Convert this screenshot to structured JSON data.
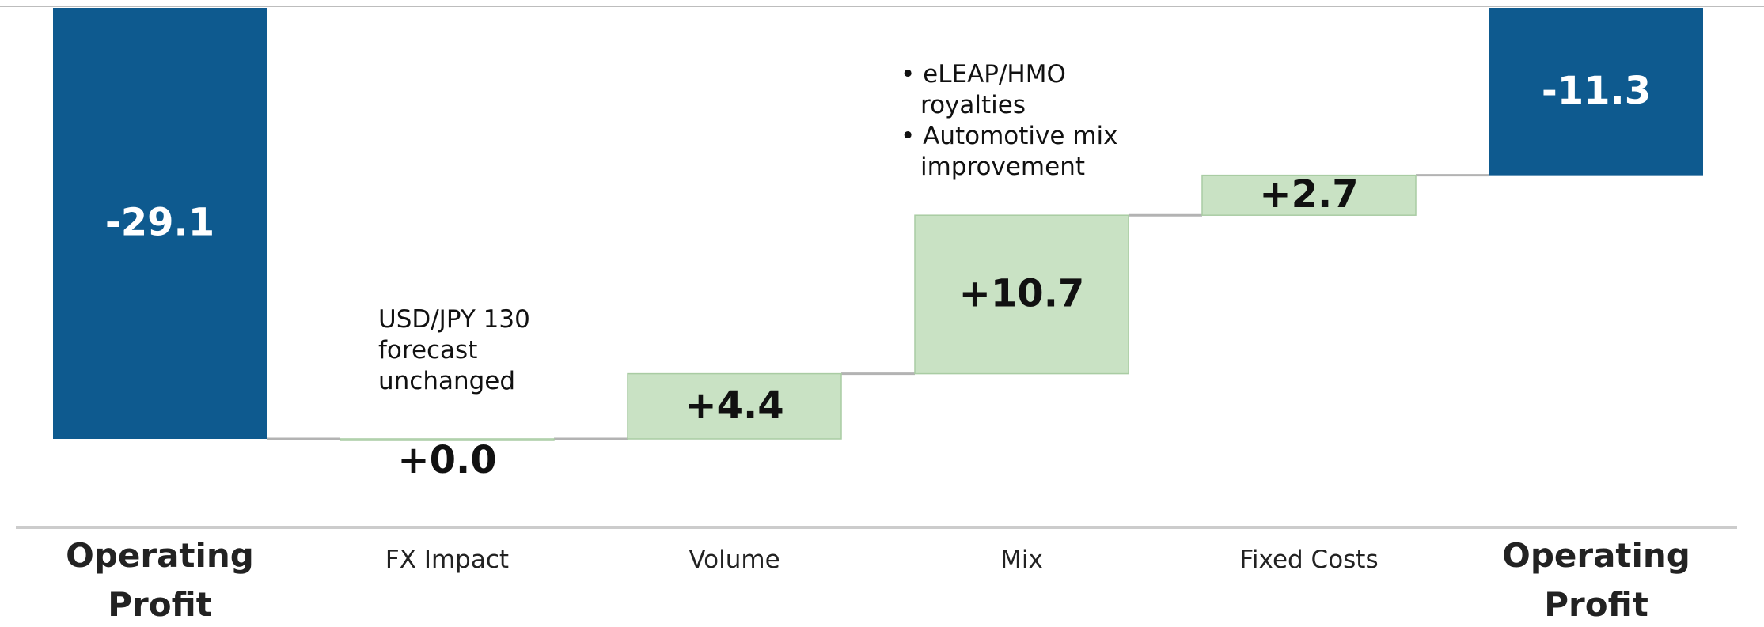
{
  "chart_data": {
    "type": "bar",
    "subtype": "waterfall",
    "categories": [
      "Operating\nProfit",
      "FX Impact",
      "Volume",
      "Mix",
      "Fixed Costs",
      "Operating\nProfit"
    ],
    "values": [
      -29.1,
      0.0,
      4.4,
      10.7,
      2.7,
      -11.3
    ],
    "kinds": [
      "total",
      "delta",
      "delta",
      "delta",
      "delta",
      "total"
    ],
    "value_labels": [
      "-29.1",
      "+0.0",
      "+4.4",
      "+10.7",
      "+2.7",
      "-11.3"
    ],
    "annotations": {
      "fx": [
        "USD/JPY 130",
        "forecast",
        "unchanged"
      ],
      "mix": [
        "• eLEAP/HMO",
        "royalties",
        "• Automotive mix",
        "improvement"
      ]
    },
    "ylim": [
      -29.1,
      0
    ],
    "grid": false,
    "legend": "none",
    "colors": {
      "total": "#0e5a8f",
      "delta": "#c9e2c4",
      "delta_border": "#a9cca3",
      "connector": "#b3b3b3",
      "axis_line": "#cccccc",
      "total_label": "#ffffff",
      "delta_label": "#111111"
    }
  }
}
